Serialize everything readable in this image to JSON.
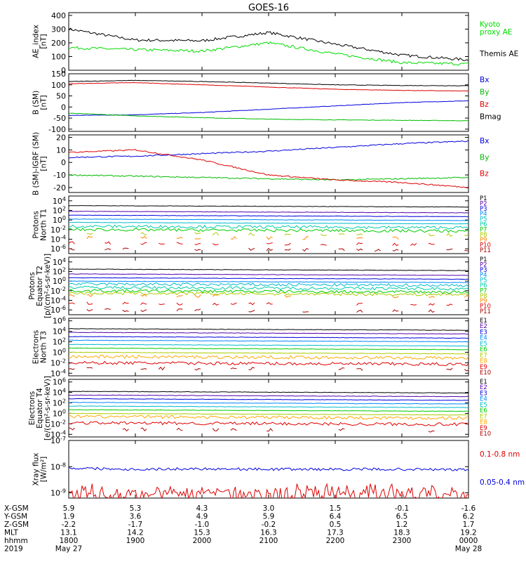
{
  "title": "GOES-16",
  "panels": [
    {
      "id": "ae",
      "ylabel": [
        "AE_index",
        "[nT]"
      ],
      "yticks": [
        "400",
        "300",
        "200",
        "100",
        "0"
      ],
      "ylim": [
        0,
        420
      ],
      "labels": [
        {
          "text": "Kyoto",
          "color": "#00dd00"
        },
        {
          "text": "proxy AE",
          "color": "#00dd00"
        },
        {
          "text": "Themis AE",
          "color": "#000000"
        }
      ]
    },
    {
      "id": "bsm",
      "ylabel": [
        "B (SM)",
        "[nT]"
      ],
      "yticks": [
        "150",
        "100",
        "50",
        "0",
        "-50",
        "-100"
      ],
      "ylim": [
        -110,
        150
      ],
      "labels": [
        {
          "text": "Bx",
          "color": "#0000dd"
        },
        {
          "text": "By",
          "color": "#00bb00"
        },
        {
          "text": "Bz",
          "color": "#dd0000"
        },
        {
          "text": "Bmag",
          "color": "#000000"
        }
      ]
    },
    {
      "id": "digrf",
      "ylabel": [
        "B (SM)-IGRF (SM)",
        "[nT]"
      ],
      "yticks": [
        "20",
        "10",
        "0",
        "-10",
        "-20"
      ],
      "ylim": [
        -24,
        22
      ],
      "labels": [
        {
          "text": "Bx",
          "color": "#0000dd"
        },
        {
          "text": "By",
          "color": "#00bb00"
        },
        {
          "text": "Bz",
          "color": "#dd0000"
        }
      ]
    },
    {
      "id": "protons_t1",
      "ylabel": [
        "Protons",
        "North T1"
      ],
      "yticks": [
        "10^4",
        "10^2",
        "10^0",
        "10^-2",
        "10^-4",
        "10^-6"
      ],
      "ylim": [
        -7,
        5
      ],
      "labels": [
        {
          "text": "P1",
          "color": "#000000"
        },
        {
          "text": "P2",
          "color": "#5500aa"
        },
        {
          "text": "P3",
          "color": "#0000dd"
        },
        {
          "text": "P4",
          "color": "#0088ff"
        },
        {
          "text": "P5",
          "color": "#00bbcc"
        },
        {
          "text": "P6",
          "color": "#00ccaa"
        },
        {
          "text": "P7",
          "color": "#00cc00"
        },
        {
          "text": "P8",
          "color": "#aacc00"
        },
        {
          "text": "P9",
          "color": "#ff8800"
        },
        {
          "text": "P10",
          "color": "#dd0000"
        },
        {
          "text": "P11",
          "color": "#aa0000"
        }
      ]
    },
    {
      "id": "protons_t2",
      "ylabel": [
        "Protons",
        "Equator T2",
        "[p/(cm²-s-sr-keV)]"
      ],
      "yticks": [
        "10^6",
        "10^4",
        "10^2",
        "10^0",
        "10^-2",
        "10^-4",
        "10^-6"
      ],
      "ylim": [
        -7,
        5
      ],
      "labels": [
        {
          "text": "P1",
          "color": "#000000"
        },
        {
          "text": "P2",
          "color": "#5500aa"
        },
        {
          "text": "P3",
          "color": "#0000dd"
        },
        {
          "text": "P4",
          "color": "#0088ff"
        },
        {
          "text": "P5",
          "color": "#00bbcc"
        },
        {
          "text": "P6",
          "color": "#00ccaa"
        },
        {
          "text": "P7",
          "color": "#00cc00"
        },
        {
          "text": "P8",
          "color": "#aacc00"
        },
        {
          "text": "P9",
          "color": "#ff8800"
        },
        {
          "text": "P10",
          "color": "#dd0000"
        },
        {
          "text": "P11",
          "color": "#aa0000"
        }
      ]
    },
    {
      "id": "electrons_t3",
      "ylabel": [
        "Electrons",
        "North T3"
      ],
      "yticks": [
        "10^6",
        "10^4",
        "10^2",
        "10^0",
        "10^-2",
        "10^-4"
      ],
      "ylim": [
        -4.5,
        6.5
      ],
      "labels": [
        {
          "text": "E1",
          "color": "#000000"
        },
        {
          "text": "E2",
          "color": "#5500aa"
        },
        {
          "text": "E3",
          "color": "#0000dd"
        },
        {
          "text": "E4",
          "color": "#0088ff"
        },
        {
          "text": "E5",
          "color": "#00bbcc"
        },
        {
          "text": "E6",
          "color": "#00cc00"
        },
        {
          "text": "E7",
          "color": "#aacc00"
        },
        {
          "text": "E8",
          "color": "#ffaa00"
        },
        {
          "text": "E9",
          "color": "#dd0000"
        },
        {
          "text": "E10",
          "color": "#aa0000"
        }
      ]
    },
    {
      "id": "electrons_t4",
      "ylabel": [
        "Electrons",
        "Equator T4",
        "[e/(cm²-s-sr-keV)]"
      ],
      "yticks": [
        "10^6",
        "10^4",
        "10^2",
        "10^0",
        "10^-2",
        "10^-4"
      ],
      "ylim": [
        -4.5,
        6.5
      ],
      "labels": [
        {
          "text": "E1",
          "color": "#000000"
        },
        {
          "text": "E2",
          "color": "#5500aa"
        },
        {
          "text": "E3",
          "color": "#0000dd"
        },
        {
          "text": "E4",
          "color": "#0088ff"
        },
        {
          "text": "E5",
          "color": "#00bbcc"
        },
        {
          "text": "E6",
          "color": "#00cc00"
        },
        {
          "text": "E7",
          "color": "#aacc00"
        },
        {
          "text": "E8",
          "color": "#ffaa00"
        },
        {
          "text": "E9",
          "color": "#dd0000"
        },
        {
          "text": "E10",
          "color": "#aa0000"
        }
      ]
    },
    {
      "id": "xray",
      "ylabel": [
        "Xray flux",
        "[W/m²]"
      ],
      "yticks": [
        "10^-7",
        "10^-8",
        "10^-9"
      ],
      "ylim": [
        -9.2,
        -7
      ],
      "labels": [
        {
          "text": "0.1-0.8 nm",
          "color": "#dd0000"
        },
        {
          "text": "0.05-0.4 nm",
          "color": "#0000dd"
        }
      ]
    }
  ],
  "footer": {
    "rows": [
      {
        "label": "X-GSM",
        "values": [
          "5.9",
          "5.3",
          "4.3",
          "3.0",
          "1.5",
          "-0.1",
          "-1.6"
        ]
      },
      {
        "label": "Y-GSM",
        "values": [
          "1.9",
          "3.6",
          "4.9",
          "5.9",
          "6.4",
          "6.5",
          "6.2"
        ]
      },
      {
        "label": "Z-GSM",
        "values": [
          "-2.2",
          "-1.7",
          "-1.0",
          "-0.2",
          "0.5",
          "1.2",
          "1.7"
        ]
      },
      {
        "label": "MLT",
        "values": [
          "13.1",
          "14.2",
          "15.3",
          "16.3",
          "17.3",
          "18.3",
          "19.2"
        ]
      },
      {
        "label": "hhmm",
        "values": [
          "1800",
          "1900",
          "2000",
          "2100",
          "2200",
          "2300",
          "0000"
        ]
      },
      {
        "label": "2019",
        "values": [
          "May 27",
          "",
          "",
          "",
          "",
          "",
          "May 28"
        ]
      }
    ]
  },
  "chart_data": {
    "type": "line",
    "title": "GOES-16",
    "x": [
      "1800",
      "1900",
      "2000",
      "2100",
      "2200",
      "2300",
      "0000"
    ],
    "series": [
      {
        "name": "Themis AE",
        "panel": "ae",
        "values": [
          300,
          220,
          215,
          275,
          190,
          110,
          75
        ],
        "color": "#000000"
      },
      {
        "name": "Kyoto proxy AE",
        "panel": "ae",
        "values": [
          165,
          150,
          140,
          200,
          120,
          55,
          45
        ],
        "color": "#00dd00"
      },
      {
        "name": "Bx",
        "panel": "bsm",
        "values": [
          -38,
          -35,
          -25,
          -10,
          5,
          20,
          28
        ],
        "color": "#0000dd"
      },
      {
        "name": "By",
        "panel": "bsm",
        "values": [
          -28,
          -40,
          -48,
          -55,
          -58,
          -60,
          -62
        ],
        "color": "#00bb00"
      },
      {
        "name": "Bz",
        "panel": "bsm",
        "values": [
          105,
          110,
          100,
          90,
          80,
          75,
          72
        ],
        "color": "#dd0000"
      },
      {
        "name": "Bmag",
        "panel": "bsm",
        "values": [
          115,
          120,
          115,
          108,
          100,
          97,
          96
        ],
        "color": "#000000"
      },
      {
        "name": "Bx",
        "panel": "digrf",
        "values": [
          4,
          5,
          7,
          9,
          12,
          15,
          17
        ],
        "color": "#0000dd"
      },
      {
        "name": "By",
        "panel": "digrf",
        "values": [
          -10,
          -11,
          -12,
          -13,
          -14,
          -13,
          -12
        ],
        "color": "#00bb00"
      },
      {
        "name": "Bz",
        "panel": "digrf",
        "values": [
          8,
          10,
          2,
          -10,
          -14,
          -16,
          -20
        ],
        "color": "#dd0000"
      },
      {
        "name": "0.1-0.8 nm",
        "panel": "xray",
        "values": [
          -8.8,
          -8.9,
          -8.85,
          -8.9,
          -8.85,
          -8.9,
          -8.95
        ],
        "color": "#dd0000"
      },
      {
        "name": "0.05-0.4 nm",
        "panel": "xray",
        "values": [
          -8.05,
          -8.1,
          -8.08,
          -8.1,
          -8.1,
          -8.1,
          -8.12
        ],
        "color": "#0000dd"
      }
    ],
    "particle_levels": {
      "protons_t1": [
        3,
        1.8,
        1,
        0.2,
        -0.5,
        -1.3,
        -2,
        -2.8,
        -3.6,
        -4.8,
        -6
      ],
      "protons_t2": [
        2.5,
        1.5,
        0.7,
        0,
        -0.6,
        -1.3,
        -2,
        -2.5,
        -3,
        -4.6,
        -6
      ],
      "electrons_t3": [
        4.5,
        3.8,
        3,
        2.3,
        1.5,
        0.8,
        0,
        -0.8,
        -2,
        -3
      ],
      "electrons_t4": [
        4.2,
        3.5,
        2.8,
        2.1,
        1.4,
        0.7,
        0,
        -0.6,
        -1.8,
        -3
      ]
    }
  }
}
